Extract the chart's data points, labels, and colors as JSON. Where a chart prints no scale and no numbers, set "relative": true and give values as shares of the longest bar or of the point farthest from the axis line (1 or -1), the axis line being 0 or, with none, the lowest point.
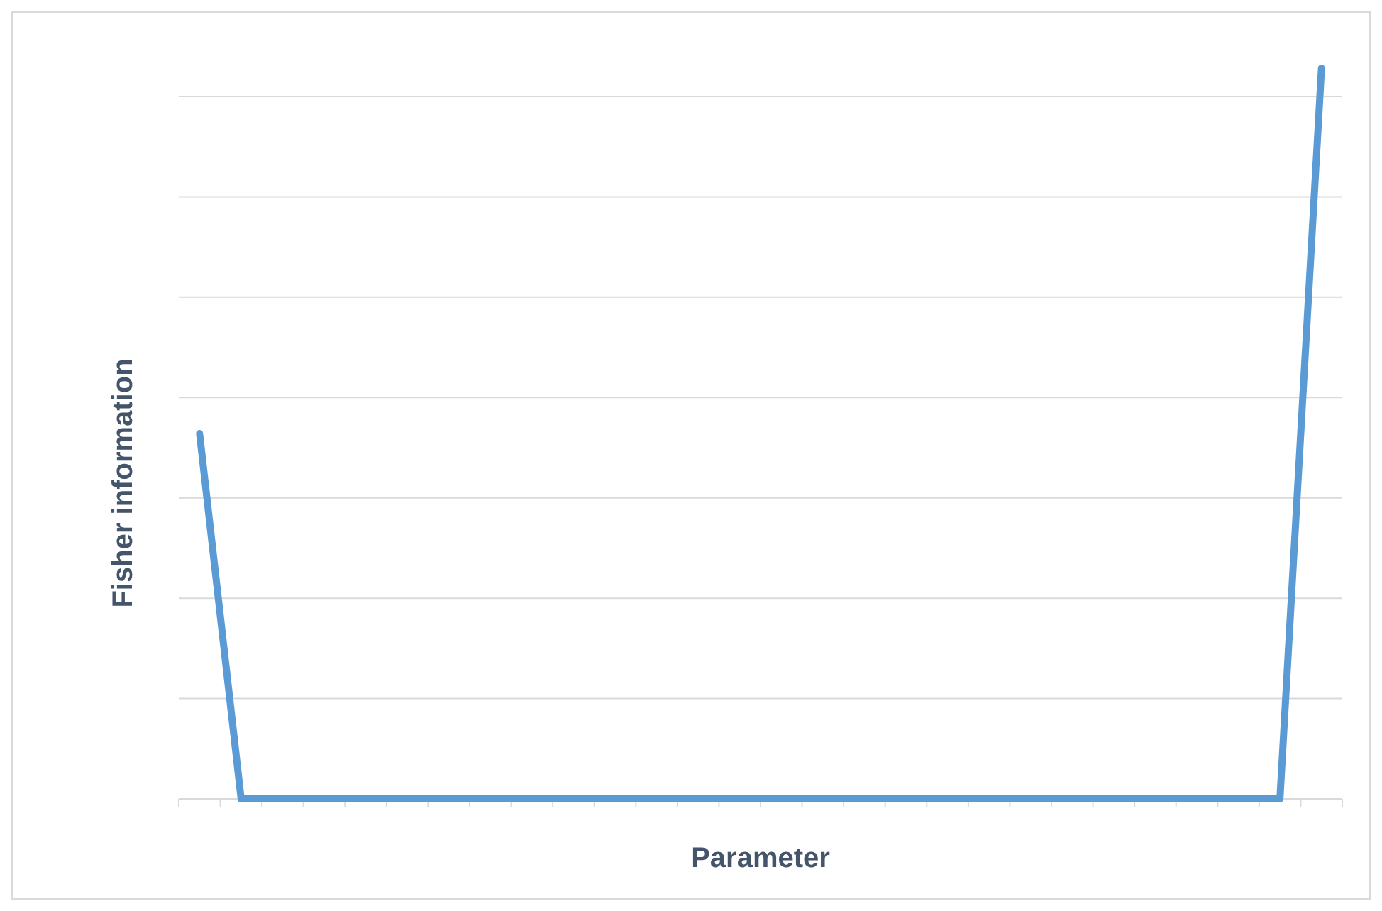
{
  "chart_data": {
    "type": "line",
    "xlabel": "Parameter",
    "ylabel": "Fisher information",
    "relative": true,
    "grid": "y",
    "line_style": "solid",
    "marker": "none",
    "categories": [
      null,
      null,
      null,
      null,
      null,
      null,
      null,
      null,
      null,
      null,
      null,
      null,
      null,
      null,
      null,
      null,
      null,
      null,
      null,
      null,
      null,
      null,
      null,
      null,
      null,
      null,
      null,
      null
    ],
    "series": [
      {
        "color": "#5b9bd5",
        "values": [
          0.5,
          0,
          0,
          0,
          0,
          0,
          0,
          0,
          0,
          0,
          0,
          0,
          0,
          0,
          0,
          0,
          0,
          0,
          0,
          0,
          0,
          0,
          0,
          0,
          0,
          0,
          0,
          1
        ]
      }
    ]
  }
}
